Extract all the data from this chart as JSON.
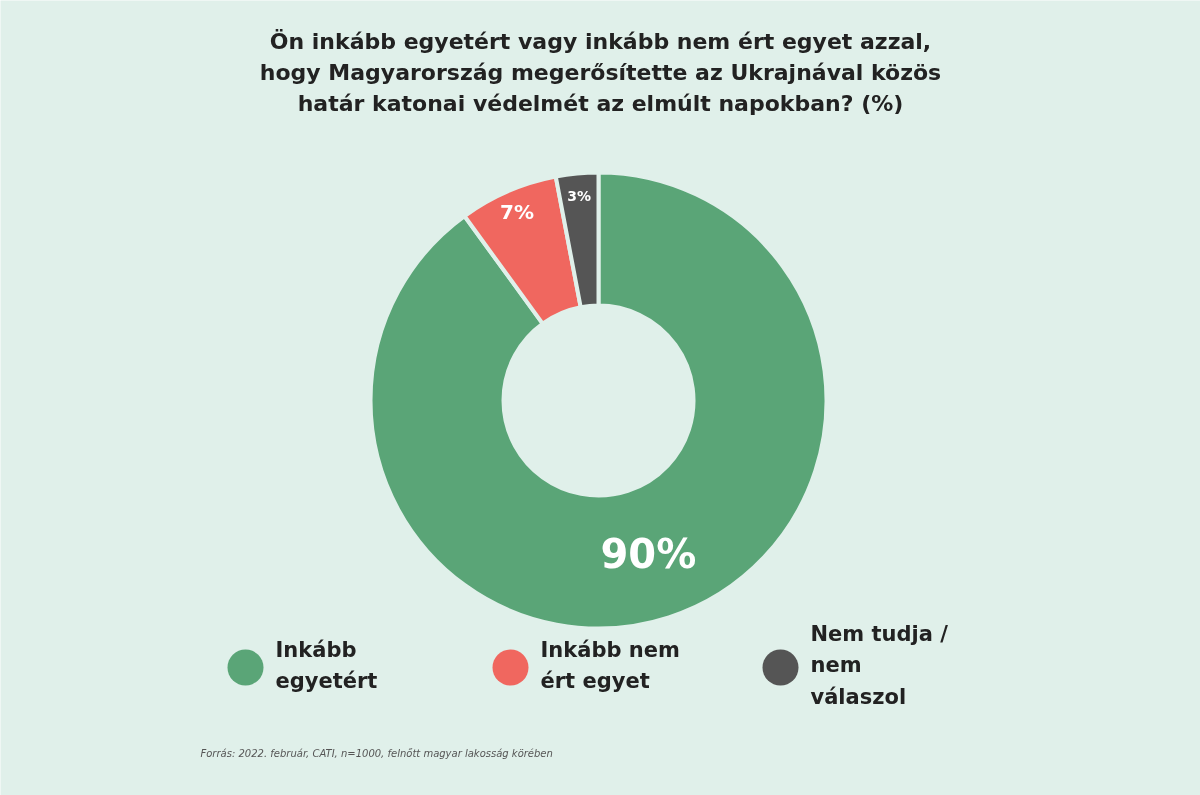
{
  "chart_data": {
    "type": "donut",
    "title": "Ön inkább egyetért vagy inkább nem ért egyet azzal, hogy Magyarország megerősítette az Ukrajnával közös határ katonai védelmét az elmúlt napokban? (%)",
    "categories": [
      "Inkább egyetért",
      "Inkább nem ért egyet",
      "Nem tudja / nem válaszol"
    ],
    "values": [
      90,
      7,
      3
    ],
    "colors": [
      "#5aa577",
      "#f0675f",
      "#555555"
    ],
    "value_labels": [
      "90%",
      "7%",
      "3%"
    ],
    "legend": "bottom",
    "annotations": [
      "Forrás: 2022. február, CATI, n=1000, felnőtt magyar lakosság körében"
    ]
  }
}
